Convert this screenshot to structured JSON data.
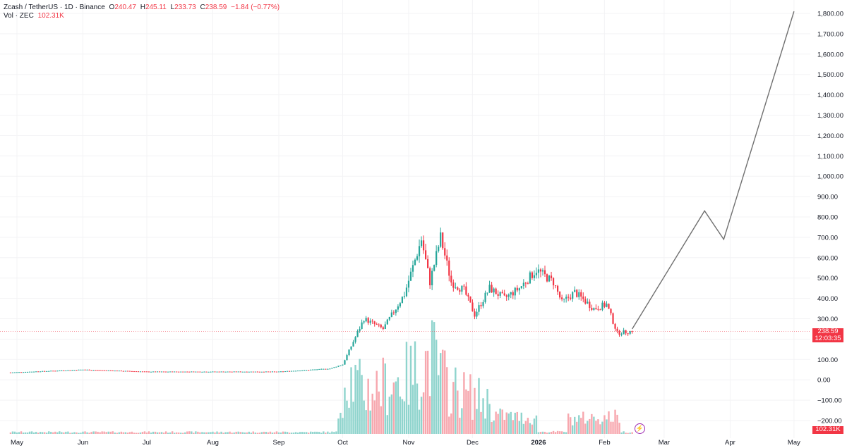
{
  "legend": {
    "pair": "Zcash / TetherUS · 1D · Binance",
    "open_label": "O",
    "open": "240.47",
    "high_label": "H",
    "high": "245.11",
    "low_label": "L",
    "low": "233.73",
    "close_label": "C",
    "close": "238.59",
    "change": "−1.84 (−0.77%)",
    "vol_label": "Vol · ZEC",
    "vol_value": "102.31K"
  },
  "price_badge": {
    "price": "238.59",
    "countdown": "12:03:35"
  },
  "volume_badge": "102.31K",
  "colors": {
    "up": "#26a69a",
    "down": "#f23645",
    "vol_up": "#8fd4cd",
    "vol_down": "#f7a7ae",
    "projection": "#707070"
  },
  "icons": {
    "replay": "lightning-bolt-icon"
  },
  "chart_data": {
    "type": "candlestick",
    "y_axis": {
      "min": -200,
      "max": 1800,
      "step": 100,
      "tick_labels": [
        "1,800.00",
        "1,700.00",
        "1,600.00",
        "1,500.00",
        "1,400.00",
        "1,300.00",
        "1,200.00",
        "1,100.00",
        "1,000.00",
        "900.00",
        "800.00",
        "700.00",
        "600.00",
        "500.00",
        "400.00",
        "300.00",
        "100.00",
        "0.00",
        "−100.00",
        "−200.00"
      ]
    },
    "x_axis": {
      "labels": [
        {
          "date": "2025-05-01",
          "label": "May"
        },
        {
          "date": "2025-06-01",
          "label": "Jun"
        },
        {
          "date": "2025-07-01",
          "label": "Jul"
        },
        {
          "date": "2025-08-01",
          "label": "Aug"
        },
        {
          "date": "2025-09-01",
          "label": "Sep"
        },
        {
          "date": "2025-10-01",
          "label": "Oct"
        },
        {
          "date": "2025-11-01",
          "label": "Nov"
        },
        {
          "date": "2025-12-01",
          "label": "Dec"
        },
        {
          "date": "2026-01-01",
          "label": "2026"
        },
        {
          "date": "2026-02-01",
          "label": "Feb"
        },
        {
          "date": "2026-03-01",
          "label": "Mar"
        },
        {
          "date": "2026-04-01",
          "label": "Apr"
        },
        {
          "date": "2026-05-01",
          "label": "May"
        }
      ]
    },
    "last_price": 238.59,
    "price_keypoints": [
      {
        "date": "2025-04-28",
        "price": 36
      },
      {
        "date": "2025-06-01",
        "price": 50
      },
      {
        "date": "2025-07-01",
        "price": 40
      },
      {
        "date": "2025-08-01",
        "price": 40
      },
      {
        "date": "2025-09-01",
        "price": 40
      },
      {
        "date": "2025-09-25",
        "price": 55
      },
      {
        "date": "2025-10-01",
        "price": 75
      },
      {
        "date": "2025-10-07",
        "price": 210
      },
      {
        "date": "2025-10-11",
        "price": 300
      },
      {
        "date": "2025-10-20",
        "price": 250
      },
      {
        "date": "2025-10-30",
        "price": 420
      },
      {
        "date": "2025-11-07",
        "price": 690
      },
      {
        "date": "2025-11-11",
        "price": 480
      },
      {
        "date": "2025-11-16",
        "price": 700
      },
      {
        "date": "2025-11-21",
        "price": 480
      },
      {
        "date": "2025-11-27",
        "price": 440
      },
      {
        "date": "2025-12-02",
        "price": 320
      },
      {
        "date": "2025-12-09",
        "price": 450
      },
      {
        "date": "2025-12-16",
        "price": 400
      },
      {
        "date": "2025-12-23",
        "price": 450
      },
      {
        "date": "2025-12-31",
        "price": 540
      },
      {
        "date": "2026-01-08",
        "price": 480
      },
      {
        "date": "2026-01-12",
        "price": 380
      },
      {
        "date": "2026-01-18",
        "price": 430
      },
      {
        "date": "2026-01-27",
        "price": 350
      },
      {
        "date": "2026-02-02",
        "price": 370
      },
      {
        "date": "2026-02-07",
        "price": 230
      },
      {
        "date": "2026-02-14",
        "price": 238.59
      }
    ],
    "volume_keypoints": [
      {
        "date": "2025-04-28",
        "vol": 0.25
      },
      {
        "date": "2025-09-28",
        "vol": 0.25
      },
      {
        "date": "2025-10-03",
        "vol": 0.8
      },
      {
        "date": "2025-10-11",
        "vol": 0.55
      },
      {
        "date": "2025-11-01",
        "vol": 0.75
      },
      {
        "date": "2025-11-12",
        "vol": 1.0
      },
      {
        "date": "2025-11-20",
        "vol": 0.6
      },
      {
        "date": "2025-12-10",
        "vol": 0.4
      },
      {
        "date": "2026-01-05",
        "vol": 0.28
      },
      {
        "date": "2026-02-06",
        "vol": 0.35
      },
      {
        "date": "2026-02-14",
        "vol": 0.2
      }
    ],
    "projection_path": [
      {
        "date": "2026-02-14",
        "price": 250
      },
      {
        "date": "2026-03-20",
        "price": 830
      },
      {
        "date": "2026-03-29",
        "price": 690
      },
      {
        "date": "2026-05-01",
        "price": 1810
      }
    ]
  }
}
